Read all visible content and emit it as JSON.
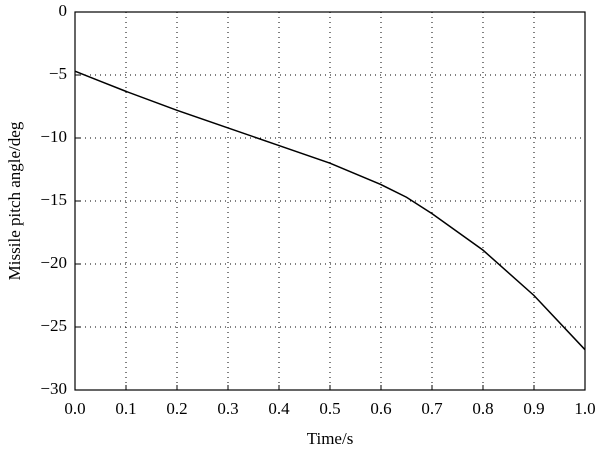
{
  "chart_data": {
    "type": "line",
    "xlabel": "Time/s",
    "ylabel": "Missile pitch angle/deg",
    "x": [
      0,
      0.05,
      0.1,
      0.2,
      0.3,
      0.4,
      0.5,
      0.6,
      0.65,
      0.7,
      0.8,
      0.9,
      1.0
    ],
    "series": [
      {
        "color": "#000000",
        "values": [
          -4.7,
          -5.5,
          -6.3,
          -7.8,
          -9.2,
          -10.6,
          -12.0,
          -13.7,
          -14.7,
          -16.0,
          -18.9,
          -22.5,
          -26.8
        ]
      }
    ],
    "xlim": [
      0,
      1
    ],
    "ylim": [
      -30,
      0
    ],
    "xticks": [
      {
        "value": 0,
        "label": "0.0"
      },
      0.1,
      0.2,
      0.3,
      0.4,
      0.5,
      0.6,
      0.7,
      0.8,
      0.9,
      {
        "value": 1,
        "label": "1.0"
      }
    ],
    "yticks": [
      {
        "value": -30,
        "label": "−30"
      },
      {
        "value": -25,
        "label": "−25"
      },
      {
        "value": -20,
        "label": "−20"
      },
      {
        "value": -15,
        "label": "−15"
      },
      {
        "value": -10,
        "label": "−10"
      },
      {
        "value": -5,
        "label": "−5"
      },
      0
    ],
    "grid": true
  }
}
